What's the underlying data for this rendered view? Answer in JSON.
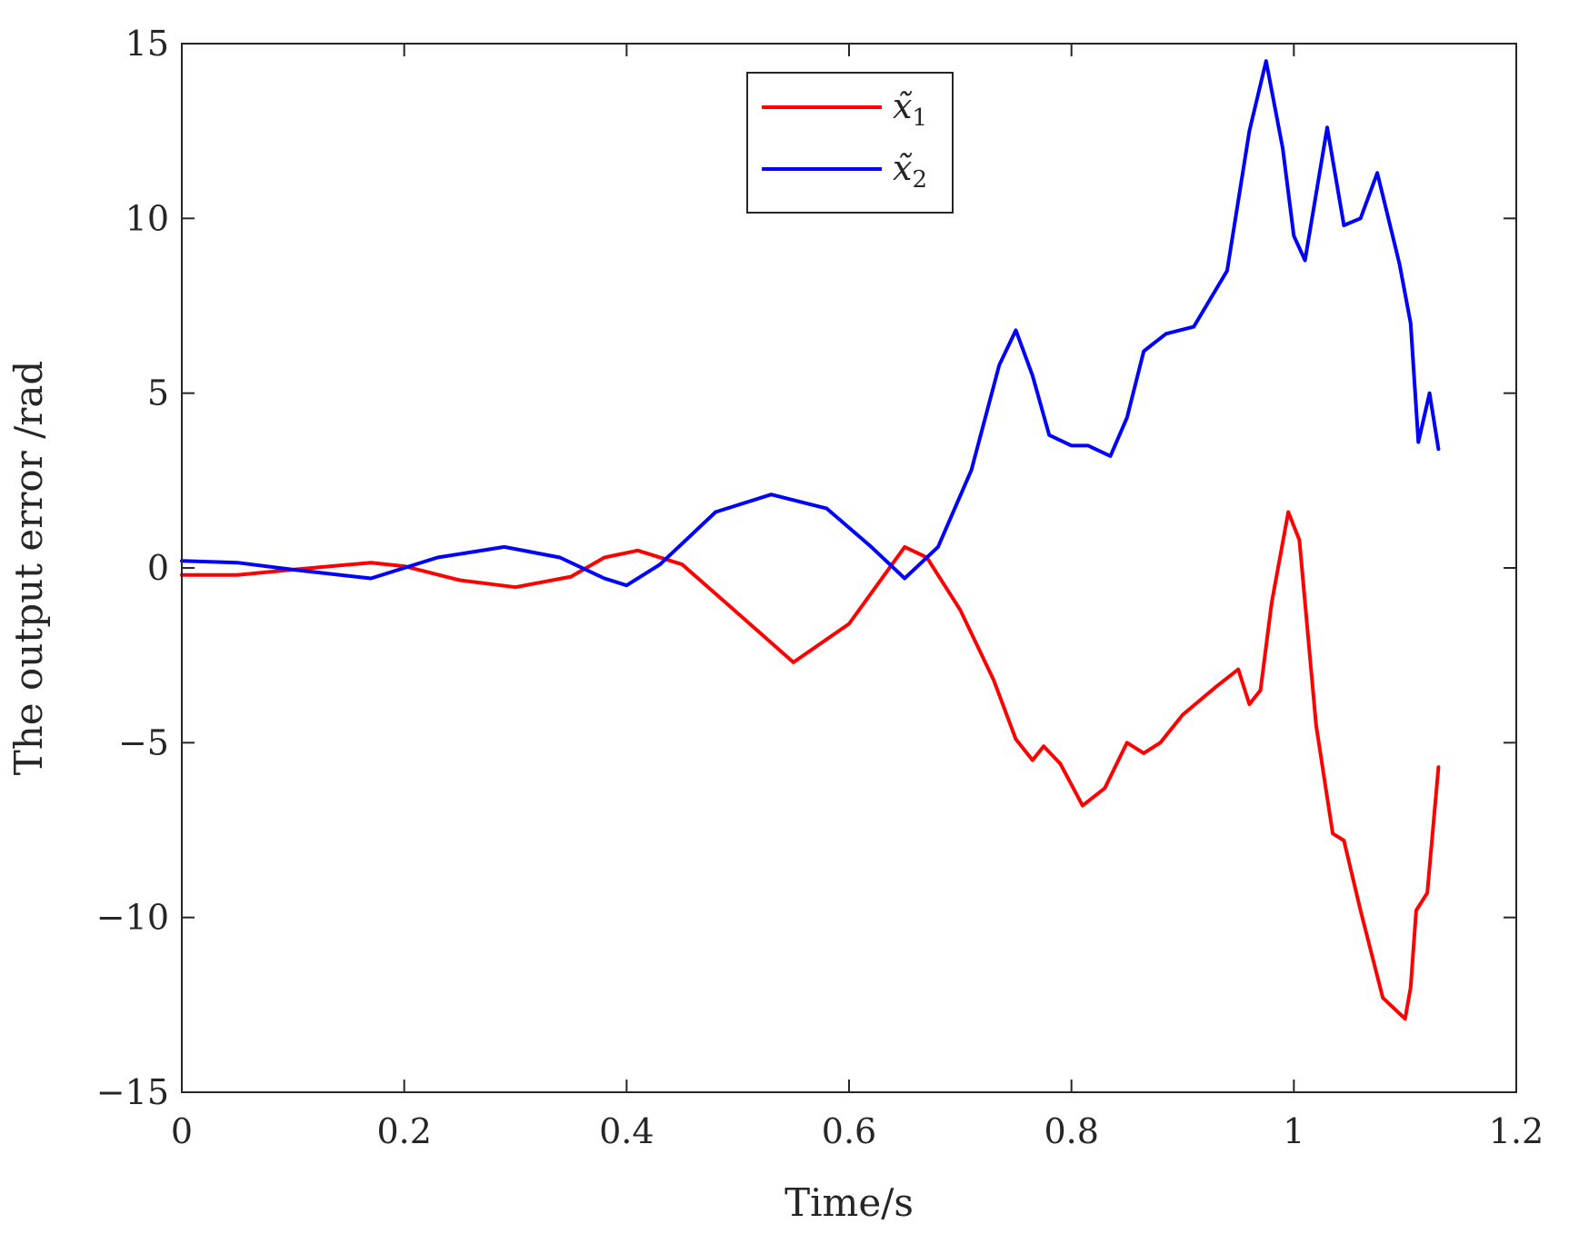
{
  "chart_data": {
    "type": "line",
    "title": "",
    "xlabel": "Time/s",
    "ylabel": "The output error /rad",
    "xlim": [
      0,
      1.2
    ],
    "ylim": [
      -15,
      15
    ],
    "xticks": [
      0,
      0.2,
      0.4,
      0.6,
      0.8,
      1,
      1.2
    ],
    "xtick_labels": [
      "0",
      "0.2",
      "0.4",
      "0.6",
      "0.8",
      "1",
      "1.2"
    ],
    "yticks": [
      -15,
      -10,
      -5,
      0,
      5,
      10,
      15
    ],
    "ytick_labels": [
      "−15",
      "−10",
      "−5",
      "0",
      "5",
      "10",
      "15"
    ],
    "grid": false,
    "legend_position": "top-center",
    "series": [
      {
        "name": "x̃1",
        "legend_symbol": "x̃",
        "legend_subscript": "1",
        "color": "#ff0000",
        "points": [
          [
            0,
            -0.2
          ],
          [
            0.05,
            -0.2
          ],
          [
            0.1,
            -0.05
          ],
          [
            0.17,
            0.15
          ],
          [
            0.2,
            0.05
          ],
          [
            0.25,
            -0.35
          ],
          [
            0.3,
            -0.55
          ],
          [
            0.35,
            -0.25
          ],
          [
            0.38,
            0.3
          ],
          [
            0.41,
            0.5
          ],
          [
            0.45,
            0.1
          ],
          [
            0.5,
            -1.3
          ],
          [
            0.55,
            -2.7
          ],
          [
            0.6,
            -1.6
          ],
          [
            0.65,
            0.6
          ],
          [
            0.67,
            0.3
          ],
          [
            0.7,
            -1.2
          ],
          [
            0.73,
            -3.2
          ],
          [
            0.75,
            -4.9
          ],
          [
            0.765,
            -5.5
          ],
          [
            0.775,
            -5.1
          ],
          [
            0.79,
            -5.6
          ],
          [
            0.81,
            -6.8
          ],
          [
            0.83,
            -6.3
          ],
          [
            0.85,
            -5.0
          ],
          [
            0.865,
            -5.3
          ],
          [
            0.88,
            -5.0
          ],
          [
            0.9,
            -4.2
          ],
          [
            0.93,
            -3.4
          ],
          [
            0.95,
            -2.9
          ],
          [
            0.96,
            -3.9
          ],
          [
            0.97,
            -3.5
          ],
          [
            0.98,
            -1.0
          ],
          [
            0.995,
            1.6
          ],
          [
            1.005,
            0.8
          ],
          [
            1.02,
            -4.5
          ],
          [
            1.035,
            -7.6
          ],
          [
            1.045,
            -7.8
          ],
          [
            1.06,
            -9.8
          ],
          [
            1.08,
            -12.3
          ],
          [
            1.1,
            -12.9
          ],
          [
            1.105,
            -12.0
          ],
          [
            1.11,
            -9.8
          ],
          [
            1.12,
            -9.3
          ],
          [
            1.13,
            -5.7
          ]
        ]
      },
      {
        "name": "x̃2",
        "legend_symbol": "x̃",
        "legend_subscript": "2",
        "color": "#0000ff",
        "points": [
          [
            0,
            0.2
          ],
          [
            0.05,
            0.15
          ],
          [
            0.1,
            -0.05
          ],
          [
            0.17,
            -0.3
          ],
          [
            0.23,
            0.3
          ],
          [
            0.29,
            0.6
          ],
          [
            0.34,
            0.3
          ],
          [
            0.38,
            -0.3
          ],
          [
            0.4,
            -0.5
          ],
          [
            0.43,
            0.1
          ],
          [
            0.48,
            1.6
          ],
          [
            0.53,
            2.1
          ],
          [
            0.58,
            1.7
          ],
          [
            0.62,
            0.6
          ],
          [
            0.65,
            -0.3
          ],
          [
            0.68,
            0.6
          ],
          [
            0.71,
            2.8
          ],
          [
            0.735,
            5.8
          ],
          [
            0.75,
            6.8
          ],
          [
            0.765,
            5.5
          ],
          [
            0.78,
            3.8
          ],
          [
            0.8,
            3.5
          ],
          [
            0.815,
            3.5
          ],
          [
            0.835,
            3.2
          ],
          [
            0.85,
            4.3
          ],
          [
            0.865,
            6.2
          ],
          [
            0.885,
            6.7
          ],
          [
            0.91,
            6.9
          ],
          [
            0.94,
            8.5
          ],
          [
            0.96,
            12.5
          ],
          [
            0.975,
            14.5
          ],
          [
            0.99,
            12.0
          ],
          [
            1.0,
            9.5
          ],
          [
            1.01,
            8.8
          ],
          [
            1.03,
            12.6
          ],
          [
            1.045,
            9.8
          ],
          [
            1.06,
            10.0
          ],
          [
            1.075,
            11.3
          ],
          [
            1.095,
            8.7
          ],
          [
            1.105,
            7.0
          ],
          [
            1.112,
            3.6
          ],
          [
            1.122,
            5.0
          ],
          [
            1.13,
            3.4
          ]
        ]
      }
    ]
  }
}
